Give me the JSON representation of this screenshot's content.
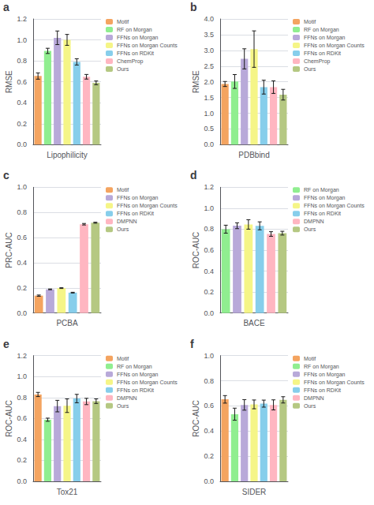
{
  "chart_data": [
    {
      "type": "bar",
      "title": "a",
      "xlabel": "Lipophilicity",
      "ylabel": "RMSE",
      "categories": [
        "Motif",
        "RF on Morgan",
        "FFNs on Morgan",
        "FFNs on Morgan Counts",
        "FFNs on RDKit",
        "ChemProp",
        "Ours"
      ],
      "values": [
        0.655,
        0.895,
        1.02,
        1.0,
        0.79,
        0.648,
        0.59
      ],
      "errors": [
        0.03,
        0.025,
        0.065,
        0.052,
        0.03,
        0.022,
        0.018
      ],
      "colors": [
        "#F4A460",
        "#90EE90",
        "#B8A9D9",
        "#F5F587",
        "#87CEEB",
        "#FFB6C1",
        "#B5C882"
      ],
      "ylim": [
        0.0,
        1.2
      ],
      "yticks": [
        {
          "value": 0,
          "label": "0.0"
        },
        0.2,
        0.4,
        0.6,
        0.8,
        {
          "value": 1,
          "label": "1.0"
        },
        1.2
      ],
      "grid": true,
      "legend": "right",
      "tick_labels": "y"
    },
    {
      "type": "bar",
      "title": "b",
      "xlabel": "PDBbind",
      "ylabel": "RMSE",
      "categories": [
        "Motif",
        "RF on Morgan",
        "FFNs on Morgan",
        "FFNs on Morgan Counts",
        "FFNs on RDKit",
        "ChemProp",
        "Ours"
      ],
      "values": [
        1.93,
        2.01,
        2.73,
        3.04,
        1.83,
        1.83,
        1.59
      ],
      "errors": [
        0.08,
        0.22,
        0.32,
        0.58,
        0.22,
        0.2,
        0.17
      ],
      "colors": [
        "#F4A460",
        "#90EE90",
        "#B8A9D9",
        "#F5F587",
        "#87CEEB",
        "#FFB6C1",
        "#B5C882"
      ],
      "ylim": [
        0.0,
        4.0
      ],
      "yticks": [
        {
          "value": 0,
          "label": "0.0"
        },
        0.5,
        {
          "value": 1,
          "label": "1.0"
        },
        1.5,
        {
          "value": 2,
          "label": "2.0"
        },
        2.5,
        {
          "value": 3,
          "label": "3.0"
        },
        3.5,
        {
          "value": 4,
          "label": "4.0"
        }
      ],
      "grid": true,
      "legend": "right",
      "tick_labels": "y"
    },
    {
      "type": "bar",
      "title": "c",
      "xlabel": "PCBA",
      "ylabel": "PRC-AUC",
      "categories": [
        "Motif",
        "FFNs on Morgan",
        "FFNs on Morgan Counts",
        "FFNs on RDKit",
        "DMPNN",
        "Ours"
      ],
      "values": [
        0.138,
        0.188,
        0.198,
        0.162,
        0.706,
        0.718
      ],
      "errors": [
        0.005,
        0.003,
        0.003,
        0.003,
        0.006,
        0.004
      ],
      "colors": [
        "#F4A460",
        "#B8A9D9",
        "#F5F587",
        "#87CEEB",
        "#FFB6C1",
        "#B5C882"
      ],
      "ylim": [
        0.0,
        1.0
      ],
      "yticks": [
        {
          "value": 0,
          "label": "0.0"
        },
        0.2,
        0.4,
        0.6,
        0.8,
        {
          "value": 1,
          "label": "1.0"
        }
      ],
      "grid": true,
      "legend": "right",
      "tick_labels": "y"
    },
    {
      "type": "bar",
      "title": "d",
      "xlabel": "BACE",
      "ylabel": "ROC-AUC",
      "categories": [
        "RF on Morgan",
        "FFNs on Morgan",
        "FFNs on Morgan Counts",
        "FFNs on RDKit",
        "DMPNN",
        "Ours"
      ],
      "values": [
        0.8,
        0.833,
        0.845,
        0.832,
        0.754,
        0.762
      ],
      "errors": [
        0.038,
        0.028,
        0.045,
        0.038,
        0.022,
        0.018
      ],
      "colors": [
        "#90EE90",
        "#B8A9D9",
        "#F5F587",
        "#87CEEB",
        "#FFB6C1",
        "#B5C882"
      ],
      "ylim": [
        0.0,
        1.2
      ],
      "yticks": [
        {
          "value": 0,
          "label": "0.0"
        },
        0.2,
        0.4,
        0.6,
        0.8,
        {
          "value": 1,
          "label": "1.0"
        },
        1.2
      ],
      "grid": true,
      "legend": "right",
      "tick_labels": "y"
    },
    {
      "type": "bar",
      "title": "e",
      "xlabel": "Tox21",
      "ylabel": "ROC-AUC",
      "categories": [
        "Motif",
        "RF on Morgan",
        "FFNs on Morgan",
        "FFNs on Morgan Counts",
        "FFNs on RDKit",
        "DMPNN",
        "Ours"
      ],
      "values": [
        0.829,
        0.588,
        0.718,
        0.722,
        0.79,
        0.762,
        0.765
      ],
      "errors": [
        0.02,
        0.015,
        0.055,
        0.065,
        0.04,
        0.03,
        0.022
      ],
      "colors": [
        "#F4A460",
        "#90EE90",
        "#B8A9D9",
        "#F5F587",
        "#87CEEB",
        "#FFB6C1",
        "#B5C882"
      ],
      "ylim": [
        0.0,
        1.2
      ],
      "yticks": [
        {
          "value": 0,
          "label": "0.0"
        },
        0.2,
        0.4,
        0.6,
        0.8,
        {
          "value": 1,
          "label": "1.0"
        },
        1.2
      ],
      "grid": true,
      "legend": "right",
      "tick_labels": "y"
    },
    {
      "type": "bar",
      "title": "f",
      "xlabel": "SIDER",
      "ylabel": "ROC-AUC",
      "categories": [
        "Motif",
        "RF on Morgan",
        "FFNs on Morgan",
        "FFNs on Morgan Counts",
        "FFNs on RDKit",
        "DMPNN",
        "Ours"
      ],
      "values": [
        0.652,
        0.534,
        0.608,
        0.612,
        0.618,
        0.608,
        0.648
      ],
      "errors": [
        0.03,
        0.048,
        0.042,
        0.035,
        0.028,
        0.04,
        0.025
      ],
      "colors": [
        "#F4A460",
        "#90EE90",
        "#B8A9D9",
        "#F5F587",
        "#87CEEB",
        "#FFB6C1",
        "#B5C882"
      ],
      "ylim": [
        0.0,
        1.0
      ],
      "yticks": [
        {
          "value": 0,
          "label": "0.0"
        },
        0.2,
        0.4,
        0.6,
        0.8,
        {
          "value": 1,
          "label": "1.0"
        }
      ],
      "grid": true,
      "legend": "right",
      "tick_labels": "y"
    }
  ]
}
